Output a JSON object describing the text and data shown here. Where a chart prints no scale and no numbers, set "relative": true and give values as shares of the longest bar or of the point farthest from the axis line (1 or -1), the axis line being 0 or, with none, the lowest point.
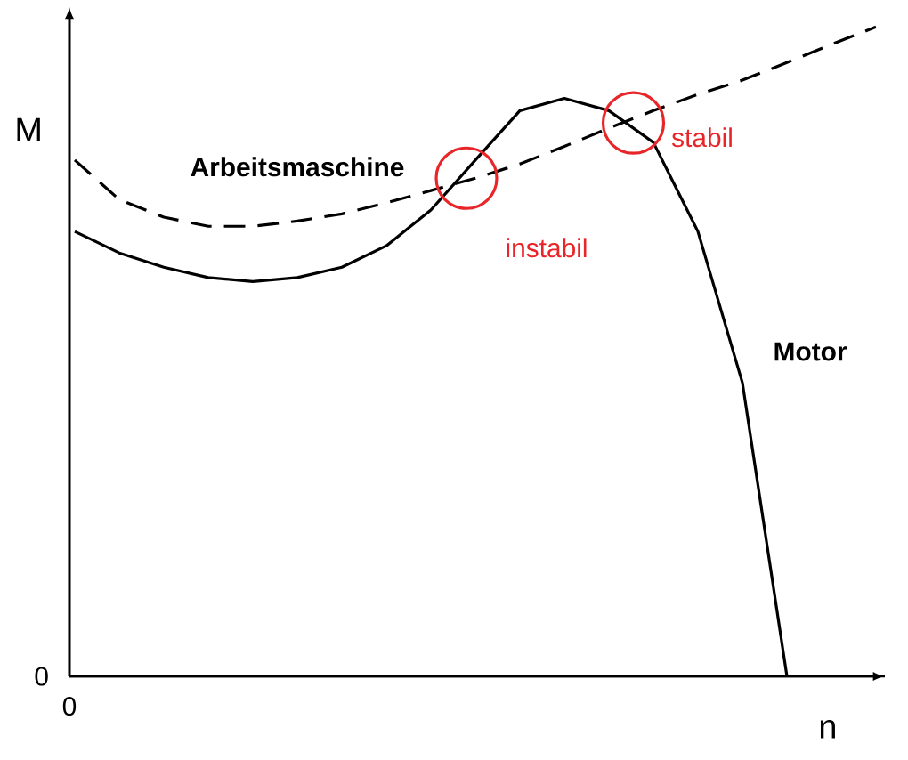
{
  "chart_data": {
    "type": "line",
    "relative": true,
    "xlabel": "n",
    "ylabel": "M",
    "categories": [
      null,
      null,
      null,
      null,
      null,
      null,
      null,
      null,
      null,
      null,
      null,
      null,
      null,
      null,
      null,
      null,
      null,
      null,
      null
    ],
    "series": [
      {
        "name": "Arbeitsmaschine",
        "color": "#000000",
        "line_style": "dashed",
        "values": [
          0.795,
          0.734,
          0.707,
          0.693,
          0.693,
          0.701,
          0.712,
          0.729,
          0.748,
          0.767,
          0.789,
          0.816,
          0.844,
          0.871,
          0.896,
          0.918,
          0.945,
          0.973,
          1.0
        ]
      },
      {
        "name": "Motor",
        "color": "#000000",
        "line_style": "solid",
        "values": [
          0.685,
          0.652,
          0.63,
          0.614,
          0.608,
          0.614,
          0.63,
          0.663,
          0.718,
          0.795,
          0.871,
          0.89,
          0.871,
          0.822,
          0.685,
          0.452,
          0.0,
          null,
          null
        ]
      }
    ],
    "annotations": [
      "instabil",
      "stabil",
      "0",
      "0"
    ]
  }
}
